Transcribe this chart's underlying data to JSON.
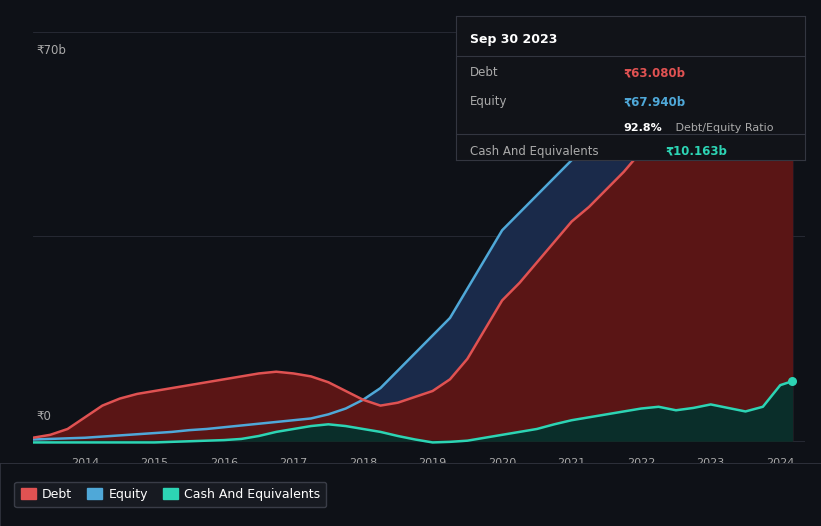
{
  "background_color": "#0e1117",
  "plot_bg_color": "#0e1117",
  "grid_color": "#2a2d38",
  "ylabel_top": "₹70b",
  "ylabel_bottom": "₹0",
  "x_ticks": [
    2013.75,
    2014.75,
    2015.75,
    2016.75,
    2017.75,
    2018.75,
    2019.75,
    2020.75,
    2021.75,
    2022.75,
    2023.75
  ],
  "years": [
    2013.0,
    2013.25,
    2013.5,
    2013.75,
    2014.0,
    2014.25,
    2014.5,
    2014.75,
    2015.0,
    2015.25,
    2015.5,
    2015.75,
    2016.0,
    2016.25,
    2016.5,
    2016.75,
    2017.0,
    2017.25,
    2017.5,
    2017.75,
    2018.0,
    2018.25,
    2018.5,
    2018.75,
    2019.0,
    2019.25,
    2019.5,
    2019.75,
    2020.0,
    2020.25,
    2020.5,
    2020.75,
    2021.0,
    2021.25,
    2021.5,
    2021.75,
    2022.0,
    2022.25,
    2022.5,
    2022.75,
    2023.0,
    2023.25,
    2023.5,
    2023.75,
    2023.92
  ],
  "debt": [
    0.5,
    1.0,
    2.0,
    4.0,
    6.0,
    7.2,
    8.0,
    8.5,
    9.0,
    9.5,
    10.0,
    10.5,
    11.0,
    11.5,
    11.8,
    11.5,
    11.0,
    10.0,
    8.5,
    7.0,
    6.0,
    6.5,
    7.5,
    8.5,
    10.5,
    14.0,
    19.0,
    24.0,
    27.0,
    30.5,
    34.0,
    37.5,
    40.0,
    43.0,
    46.0,
    49.5,
    51.0,
    52.5,
    54.0,
    55.5,
    56.5,
    58.0,
    60.5,
    63.0,
    63.08
  ],
  "equity": [
    0.2,
    0.3,
    0.4,
    0.5,
    0.7,
    0.9,
    1.1,
    1.3,
    1.5,
    1.8,
    2.0,
    2.3,
    2.6,
    2.9,
    3.2,
    3.5,
    3.8,
    4.5,
    5.5,
    7.0,
    9.0,
    12.0,
    15.0,
    18.0,
    21.0,
    26.0,
    31.0,
    36.0,
    39.0,
    42.0,
    45.0,
    48.0,
    51.0,
    54.0,
    57.0,
    60.0,
    62.0,
    63.5,
    65.0,
    66.5,
    66.0,
    66.5,
    67.0,
    67.5,
    67.94
  ],
  "cash": [
    -0.3,
    -0.3,
    -0.3,
    -0.3,
    -0.3,
    -0.3,
    -0.3,
    -0.3,
    -0.2,
    -0.1,
    0.0,
    0.1,
    0.3,
    0.8,
    1.5,
    2.0,
    2.5,
    2.8,
    2.5,
    2.0,
    1.5,
    0.8,
    0.2,
    -0.3,
    -0.2,
    0.0,
    0.5,
    1.0,
    1.5,
    2.0,
    2.8,
    3.5,
    4.0,
    4.5,
    5.0,
    5.5,
    5.8,
    5.2,
    5.6,
    6.2,
    5.6,
    5.0,
    5.8,
    9.5,
    10.163
  ],
  "debt_color": "#e05252",
  "equity_color": "#4fa8d8",
  "cash_color": "#2dd4b4",
  "debt_fill": "#5a1515",
  "equity_fill": "#1a2a4a",
  "cash_fill": "#0a2e2a",
  "tooltip_bg": "#111318",
  "tooltip_border": "#333640",
  "tooltip_title": "Sep 30 2023",
  "tooltip_debt_label": "Debt",
  "tooltip_debt_value": "₹63.080b",
  "tooltip_equity_label": "Equity",
  "tooltip_equity_value": "₹67.940b",
  "tooltip_ratio_bold": "92.8%",
  "tooltip_ratio_normal": " Debt/Equity Ratio",
  "tooltip_cash_label": "Cash And Equivalents",
  "tooltip_cash_value": "₹10.163b",
  "legend_debt": "Debt",
  "legend_equity": "Equity",
  "legend_cash": "Cash And Equivalents",
  "ylim": [
    -2,
    70
  ],
  "xlim": [
    2013.0,
    2024.1
  ]
}
